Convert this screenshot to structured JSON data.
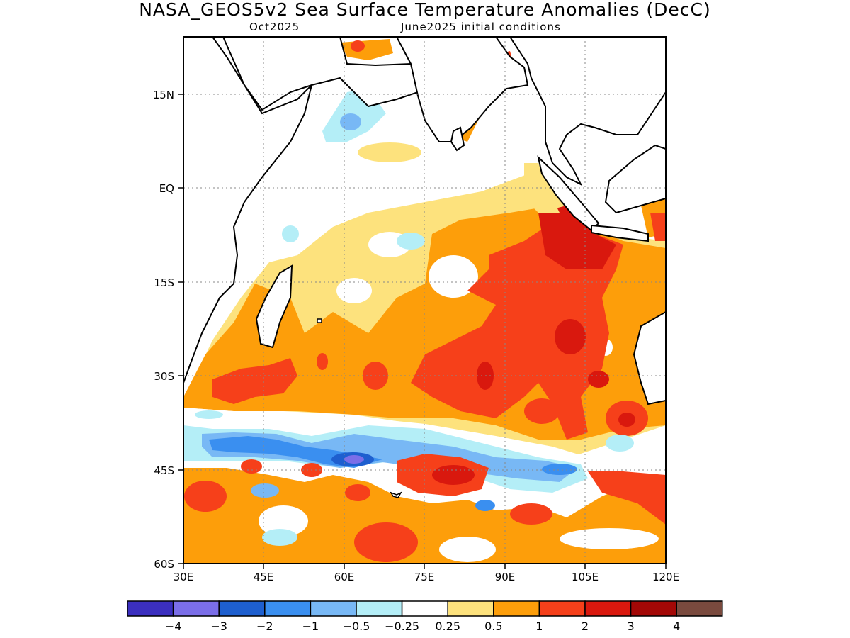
{
  "title": "NASA_GEOS5v2 Sea Surface Temperature Anomalies (DecC)",
  "subtitle_left": "Oct2025",
  "subtitle_right": "June2025 initial conditions",
  "map": {
    "lon_range": [
      30,
      120
    ],
    "lat_range": [
      -60,
      24
    ],
    "x_ticks": [
      "30E",
      "45E",
      "60E",
      "75E",
      "90E",
      "105E",
      "120E"
    ],
    "y_ticks": [
      "15N",
      "EQ",
      "15S",
      "30S",
      "45S",
      "60S"
    ]
  },
  "colorbar": {
    "colors": [
      "#3b2fbf",
      "#7b6ee8",
      "#1e5fcf",
      "#3a8ff0",
      "#78b8f5",
      "#b4eef7",
      "#ffffff",
      "#fde27d",
      "#fd9e0a",
      "#f6401a",
      "#d9180e",
      "#a30806",
      "#7a4a3e"
    ],
    "labels": [
      "−4",
      "−3",
      "−2",
      "−1",
      "−0.5",
      "−0.25",
      "0.25",
      "0.5",
      "1",
      "2",
      "3",
      "4"
    ]
  }
}
